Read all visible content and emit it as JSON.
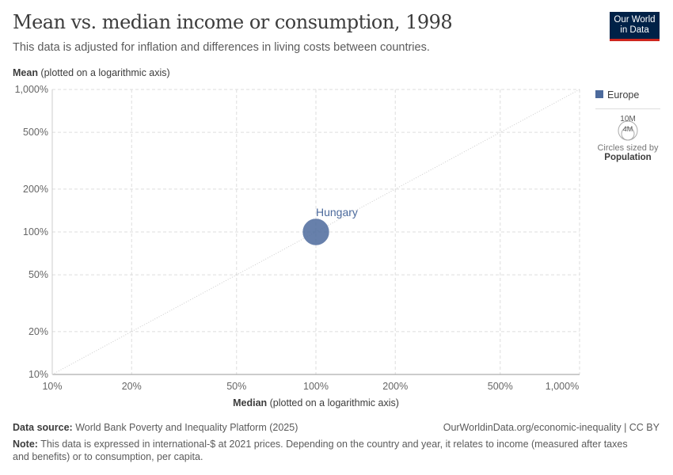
{
  "header": {
    "title": "Mean vs. median income or consumption, 1998",
    "subtitle": "This data is adjusted for inflation and differences in living costs between countries.",
    "logo_line1": "Our World",
    "logo_line2": "in Data"
  },
  "chart_data": {
    "type": "scatter",
    "title": "Mean vs. median income or consumption, 1998",
    "xlabel_bold": "Median",
    "xlabel_rest": " (plotted on a logarithmic axis)",
    "ylabel_bold": "Mean",
    "ylabel_rest": " (plotted on a logarithmic axis)",
    "xscale": "log",
    "yscale": "log",
    "xlim": [
      10,
      1000
    ],
    "ylim": [
      10,
      1000
    ],
    "x_ticks": [
      10,
      20,
      50,
      100,
      200,
      500,
      1000
    ],
    "x_tick_labels": [
      "10%",
      "20%",
      "50%",
      "100%",
      "200%",
      "500%",
      "1,000%"
    ],
    "y_ticks": [
      10,
      20,
      50,
      100,
      200,
      500,
      1000
    ],
    "y_tick_labels": [
      "10%",
      "20%",
      "50%",
      "100%",
      "200%",
      "500%",
      "1,000%"
    ],
    "grid": true,
    "reference_line": "y = x",
    "points": [
      {
        "label": "Hungary",
        "x": 100,
        "y": 100,
        "region": "Europe",
        "population": 10000000
      }
    ],
    "legend": {
      "position": "right",
      "entries": [
        {
          "name": "Europe",
          "color": "#4c6a9c"
        }
      ],
      "size_legend": {
        "values": [
          "10M",
          "4M"
        ],
        "caption": "Circles sized by",
        "variable": "Population"
      }
    }
  },
  "footer": {
    "source_label": "Data source:",
    "source": " World Bank Poverty and Inequality Platform (2025)",
    "url": "OurWorldinData.org/economic-inequality | CC BY",
    "note_label": "Note:",
    "note": " This data is expressed in international-$ at 2021 prices. Depending on the country and year, it relates to income (measured after taxes and benefits) or to consumption, per capita."
  }
}
